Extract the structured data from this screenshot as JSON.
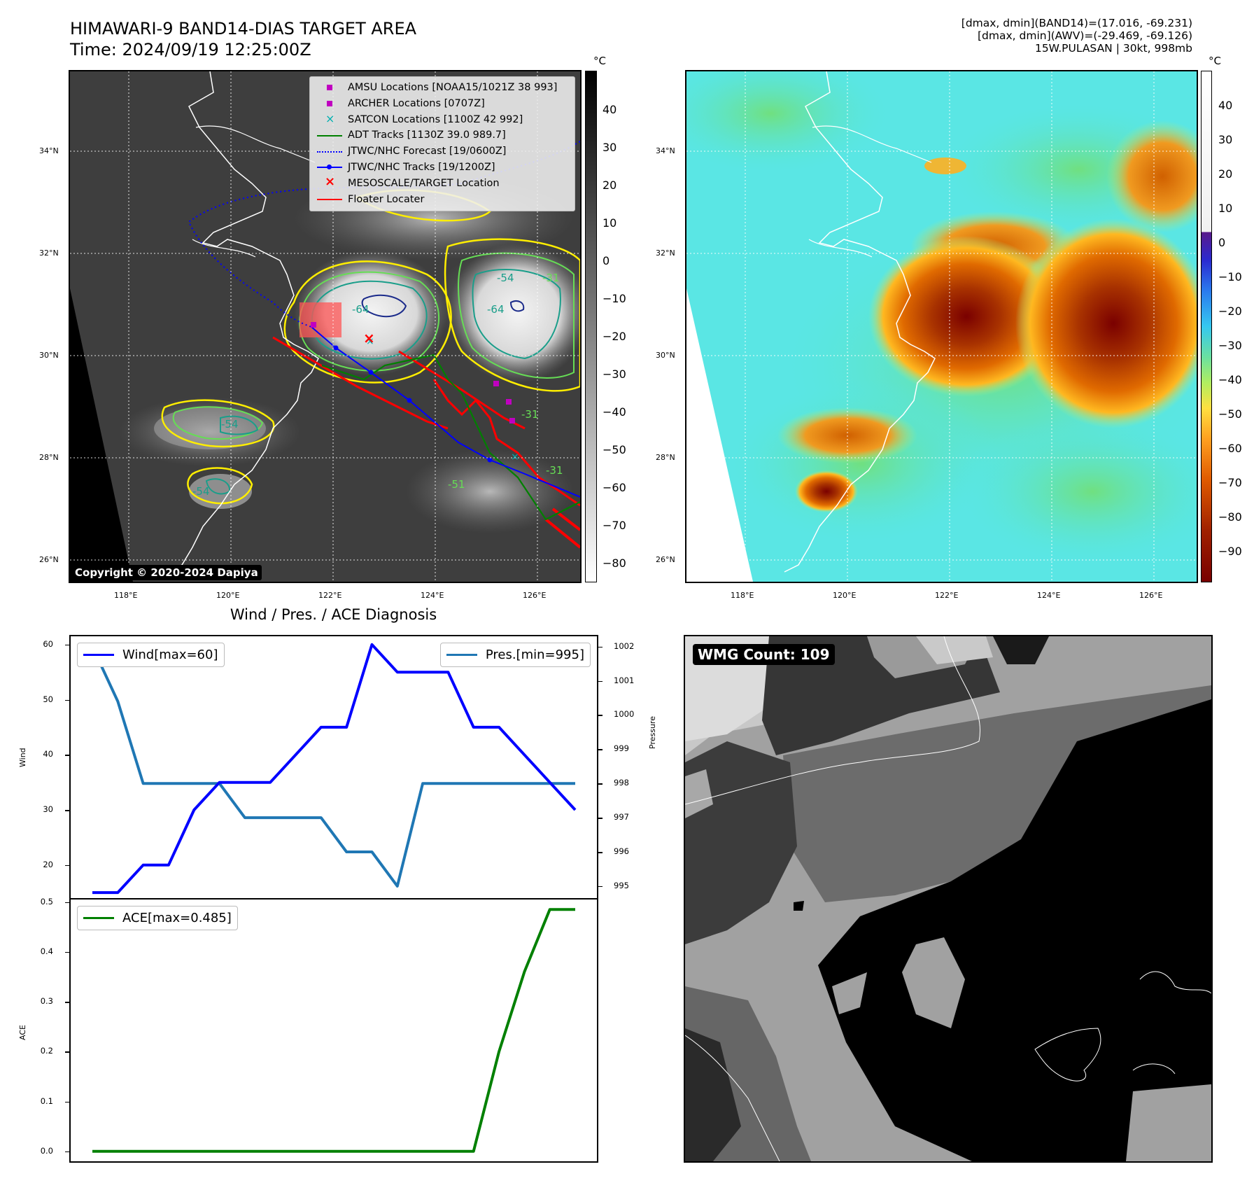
{
  "header": {
    "title_line1": "HIMAWARI-9 BAND14-DIAS TARGET AREA",
    "title_line2": "Time: 2024/09/19 12:25:00Z",
    "info_line1": "[dmax, dmin](BAND14)=(17.016, -69.231)",
    "info_line2": "[dmax, dmin](AWV)=(-29.469, -69.126)",
    "info_line3": "15W.PULASAN | 30kt, 998mb"
  },
  "maps": {
    "lat_ticks": [
      "34°N",
      "32°N",
      "30°N",
      "28°N",
      "26°N"
    ],
    "lon_ticks": [
      "118°E",
      "120°E",
      "122°E",
      "124°E",
      "126°E"
    ],
    "copyright": "Copyright © 2020-2024 Dapiya",
    "colorbar_unit": "°C",
    "gray_colorbar_ticks": [
      "40",
      "30",
      "20",
      "10",
      "0",
      "−10",
      "−20",
      "−30",
      "−40",
      "−50",
      "−60",
      "−70",
      "−80"
    ],
    "color_colorbar_ticks": [
      "40",
      "30",
      "20",
      "10",
      "0",
      "−10",
      "−20",
      "−30",
      "−40",
      "−50",
      "−60",
      "−70",
      "−80",
      "−90"
    ],
    "contour_labels": [
      "-64",
      "-54",
      "-31",
      "-64",
      "-54",
      "-31",
      "-54",
      "-51",
      "-31"
    ],
    "colors": {
      "amsu": "#c000c0",
      "archer": "#c000c0",
      "satcon": "#00b0b0",
      "adt": "#008000",
      "forecast": "#0000ff",
      "tracks": "#0000ff",
      "target": "#ff0000",
      "floater": "#ff0000",
      "contour_yellow": "#ffee00",
      "contour_green": "#66dd55",
      "contour_teal": "#1a9e8a",
      "contour_navy": "#1a2a8a"
    },
    "legend": [
      {
        "icon": "magenta-square",
        "label": "AMSU Locations [NOAA15/1021Z 38 993]"
      },
      {
        "icon": "magenta-square",
        "label": "ARCHER Locations [0707Z]"
      },
      {
        "icon": "cyan-x",
        "label": "SATCON Locations [1100Z 42 992]"
      },
      {
        "icon": "green-line",
        "label": "ADT Tracks [1130Z 39.0 989.7]"
      },
      {
        "icon": "blue-dotted-line",
        "label": "JTWC/NHC Forecast [19/0600Z]"
      },
      {
        "icon": "blue-line-dot",
        "label": "JTWC/NHC Tracks [19/1200Z]"
      },
      {
        "icon": "red-x",
        "label": "MESOSCALE/TARGET Location"
      },
      {
        "icon": "red-line",
        "label": "Floater Locater"
      }
    ]
  },
  "chart_data": [
    {
      "type": "line",
      "title": "Wind / Pres. / ACE Diagnosis",
      "ylabel": "Wind",
      "ylabel_right": "Pressure",
      "ylim": [
        14,
        61.5
      ],
      "ylim_right": [
        994.65,
        1002.3
      ],
      "yticks": [
        20,
        30,
        40,
        50,
        60
      ],
      "yticks_right": [
        995,
        996,
        997,
        998,
        999,
        1000,
        1001,
        1002
      ],
      "x": [
        0,
        1,
        2,
        3,
        4,
        5,
        6,
        7,
        8,
        9,
        10,
        11,
        12,
        13,
        14,
        15,
        16,
        17,
        18,
        19
      ],
      "series": [
        {
          "name": "Wind[max=60]",
          "axis": "left",
          "color": "#0000ff",
          "values": [
            15,
            15,
            20,
            20,
            30,
            35,
            35,
            35,
            40,
            45,
            45,
            60,
            55,
            55,
            55,
            45,
            45,
            40,
            35,
            30
          ]
        },
        {
          "name": "Pres.[min=995]",
          "axis": "right",
          "color": "#1f77b4",
          "values": [
            1002,
            1000.4,
            998,
            998,
            998,
            998,
            997,
            997,
            997,
            997,
            996,
            996,
            995,
            998,
            998,
            998,
            998,
            998,
            998,
            998
          ]
        }
      ]
    },
    {
      "type": "line",
      "ylabel": "ACE",
      "ylim": [
        -0.02,
        0.505
      ],
      "yticks": [
        0.0,
        0.1,
        0.2,
        0.3,
        0.4,
        0.5
      ],
      "x": [
        0,
        1,
        2,
        3,
        4,
        5,
        6,
        7,
        8,
        9,
        10,
        11,
        12,
        13,
        14,
        15,
        16,
        17,
        18,
        19
      ],
      "series": [
        {
          "name": "ACE[max=0.485]",
          "axis": "left",
          "color": "#008000",
          "values": [
            0,
            0,
            0,
            0,
            0,
            0,
            0,
            0,
            0,
            0,
            0,
            0,
            0,
            0,
            0,
            0,
            0.2,
            0.36,
            0.485,
            0.485
          ]
        }
      ]
    }
  ],
  "wmg": {
    "label": "WMG Count: 109"
  }
}
